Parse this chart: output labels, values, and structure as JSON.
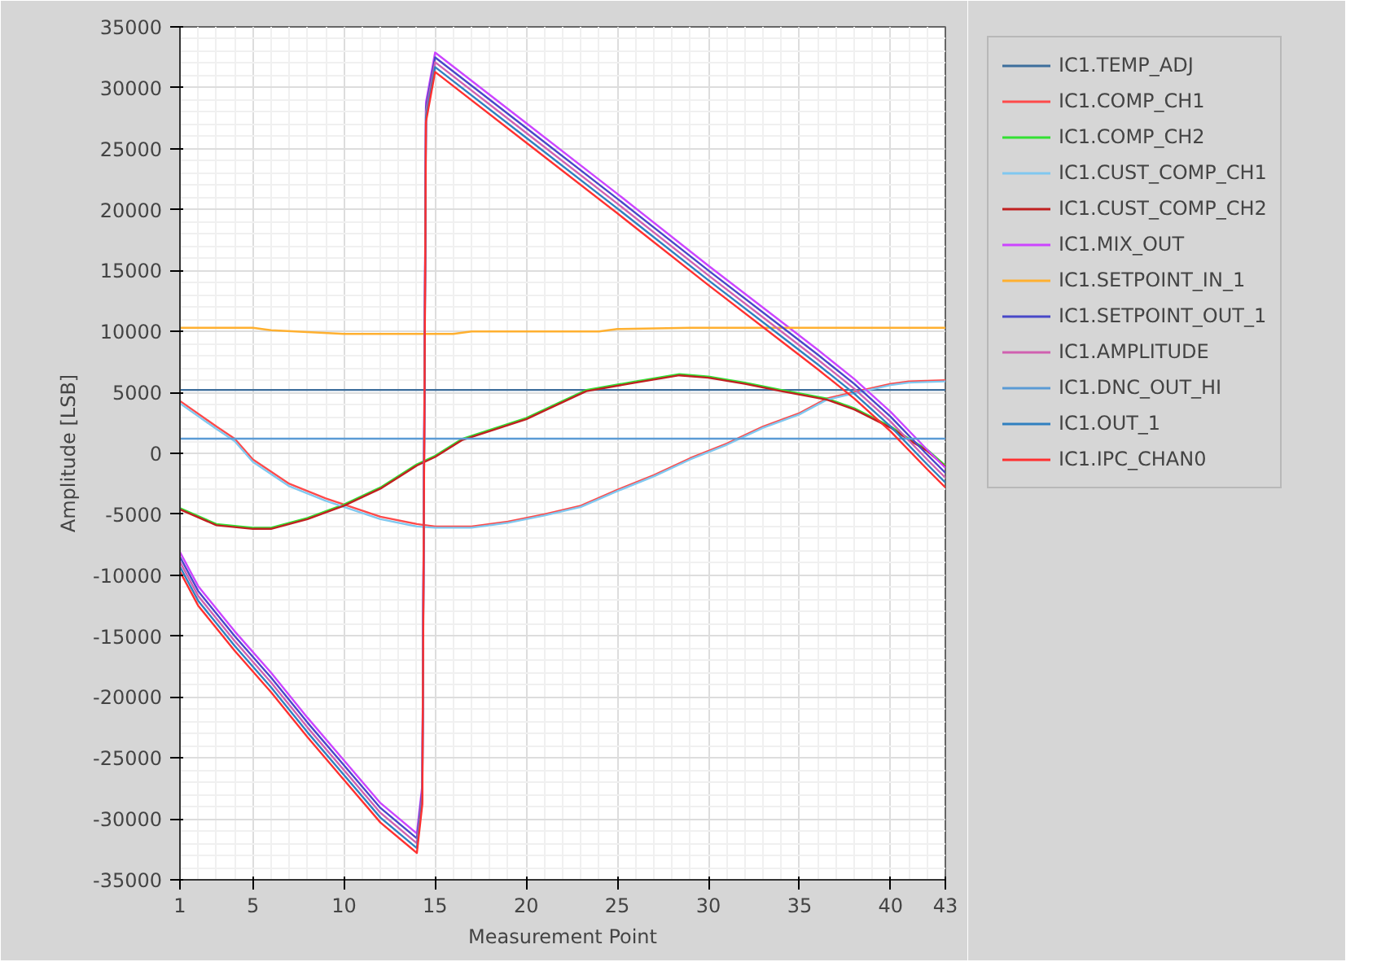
{
  "chart_data": {
    "type": "line",
    "xlabel": "Measurement Point",
    "ylabel": "Amplitude [LSB]",
    "xlim": [
      1,
      43
    ],
    "ylim": [
      -35000,
      35000
    ],
    "xticks": [
      1,
      5,
      10,
      15,
      20,
      25,
      30,
      35,
      40,
      43
    ],
    "yticks": [
      -35000,
      -30000,
      -25000,
      -20000,
      -15000,
      -10000,
      -5000,
      0,
      5000,
      10000,
      15000,
      20000,
      25000,
      30000,
      35000
    ],
    "grid": true,
    "legend": "right",
    "marker": "none",
    "line_style": "solid",
    "series": [
      {
        "name": "IC1.TEMP_ADJ",
        "color": "#3d6e9c",
        "x": [
          1,
          43
        ],
        "values": [
          5200,
          5200
        ]
      },
      {
        "name": "IC1.COMP_CH1",
        "color": "#ff4a4a",
        "x": [
          1,
          3,
          4,
          5,
          7,
          9,
          10,
          12,
          14,
          15,
          17,
          19,
          21,
          23,
          25,
          27,
          29,
          31,
          33,
          35,
          36.5,
          38.5,
          40,
          41,
          43
        ],
        "values": [
          4300,
          2200,
          1200,
          -500,
          -2500,
          -3700,
          -4200,
          -5200,
          -5800,
          -6000,
          -6000,
          -5600,
          -5000,
          -4300,
          -3000,
          -1800,
          -400,
          800,
          2200,
          3300,
          4500,
          5200,
          5700,
          5900,
          6000
        ]
      },
      {
        "name": "IC1.COMP_CH2",
        "color": "#33e033",
        "x": [
          1,
          3,
          5,
          6,
          8,
          10,
          12,
          14,
          15,
          16.5,
          20,
          23.3,
          26,
          28.4,
          30,
          32,
          34,
          36.5,
          38,
          40,
          41,
          42,
          43
        ],
        "values": [
          -4500,
          -5800,
          -6100,
          -6100,
          -5300,
          -4200,
          -2800,
          -900,
          -200,
          1200,
          2900,
          5200,
          5900,
          6500,
          6300,
          5800,
          5200,
          4500,
          3700,
          2200,
          1200,
          300,
          -1000
        ]
      },
      {
        "name": "IC1.CUST_COMP_CH1",
        "color": "#80c8f0",
        "x": [
          1,
          3,
          4,
          5,
          7,
          9,
          10,
          12,
          14,
          15,
          17,
          19,
          21,
          23,
          25,
          27,
          29,
          31,
          33,
          35,
          36.5,
          38.5,
          40,
          41,
          43
        ],
        "values": [
          4100,
          2000,
          1000,
          -700,
          -2700,
          -3900,
          -4400,
          -5400,
          -6000,
          -6100,
          -6100,
          -5700,
          -5100,
          -4400,
          -3100,
          -1900,
          -500,
          700,
          2100,
          3200,
          4400,
          5100,
          5600,
          5800,
          5900
        ]
      },
      {
        "name": "IC1.CUST_COMP_CH2",
        "color": "#c02020",
        "x": [
          1,
          3,
          5,
          6,
          8,
          10,
          12,
          14,
          15,
          16.5,
          20,
          23.3,
          26,
          28.4,
          30,
          32,
          34,
          36.5,
          38,
          40,
          41,
          42,
          43
        ],
        "values": [
          -4600,
          -5900,
          -6200,
          -6200,
          -5400,
          -4300,
          -2900,
          -1000,
          -300,
          1100,
          2800,
          5100,
          5800,
          6400,
          6200,
          5700,
          5100,
          4400,
          3600,
          2100,
          1100,
          200,
          -1100
        ]
      },
      {
        "name": "IC1.MIX_OUT",
        "color": "#cc44ff",
        "x": [
          1,
          2,
          4,
          6,
          8,
          10,
          12,
          14,
          14.3,
          14.5,
          15,
          20,
          25,
          30,
          34,
          36,
          38,
          40,
          42,
          43
        ],
        "values": [
          -8100,
          -10900,
          -14600,
          -18000,
          -21700,
          -25200,
          -28700,
          -31200,
          -27200,
          28800,
          32900,
          27100,
          21300,
          15400,
          10800,
          8500,
          6100,
          3400,
          300,
          -1200
        ]
      },
      {
        "name": "IC1.SETPOINT_IN_1",
        "color": "#ffb030",
        "x": [
          1,
          5,
          6,
          10,
          16,
          17,
          24,
          25,
          29,
          43
        ],
        "values": [
          10300,
          10300,
          10100,
          9800,
          9800,
          10000,
          10000,
          10200,
          10300,
          10300
        ]
      },
      {
        "name": "IC1.SETPOINT_OUT_1",
        "color": "#4848c8",
        "x": [
          1,
          2,
          4,
          6,
          8,
          10,
          12,
          14,
          14.3,
          14.5,
          15,
          20,
          25,
          30,
          34,
          36,
          38,
          40,
          42,
          43
        ],
        "values": [
          -8500,
          -11300,
          -15000,
          -18400,
          -22100,
          -25600,
          -29100,
          -31600,
          -27600,
          28400,
          32500,
          26700,
          20900,
          15000,
          10400,
          8100,
          5700,
          3000,
          -100,
          -1600
        ]
      },
      {
        "name": "IC1.AMPLITUDE",
        "color": "#d060b0",
        "x": [
          1,
          2,
          4,
          6,
          8,
          10,
          12,
          14,
          14.3,
          14.5,
          15,
          20,
          25,
          30,
          34,
          36,
          38,
          40,
          42,
          43
        ],
        "values": [
          -8900,
          -11700,
          -15400,
          -18800,
          -22500,
          -26000,
          -29500,
          -32000,
          -28000,
          28000,
          32100,
          26300,
          20500,
          14600,
          10000,
          7700,
          5300,
          2600,
          -500,
          -2000
        ]
      },
      {
        "name": "IC1.DNC_OUT_HI",
        "color": "#5b9bd5",
        "x": [
          1,
          43
        ],
        "values": [
          1200,
          1200
        ]
      },
      {
        "name": "IC1.OUT_1",
        "color": "#3080c0",
        "x": [
          1,
          2,
          4,
          6,
          8,
          10,
          12,
          14,
          14.3,
          14.5,
          15,
          20,
          25,
          30,
          34,
          36,
          38,
          40,
          42,
          43
        ],
        "values": [
          -9300,
          -12100,
          -15800,
          -19200,
          -22900,
          -26400,
          -29900,
          -32400,
          -28400,
          27600,
          31700,
          25900,
          20100,
          14200,
          9600,
          7300,
          4900,
          2200,
          -900,
          -2400
        ]
      },
      {
        "name": "IC1.IPC_CHAN0",
        "color": "#ff3030",
        "x": [
          1,
          2,
          4,
          6,
          8,
          10,
          12,
          14,
          14.3,
          14.5,
          15,
          20,
          25,
          30,
          34,
          36,
          38,
          40,
          42,
          43
        ],
        "values": [
          -9700,
          -12500,
          -16200,
          -19600,
          -23300,
          -26800,
          -30300,
          -32800,
          -28800,
          27200,
          31300,
          25500,
          19700,
          13800,
          9200,
          6900,
          4500,
          1800,
          -1300,
          -2800
        ]
      }
    ]
  }
}
